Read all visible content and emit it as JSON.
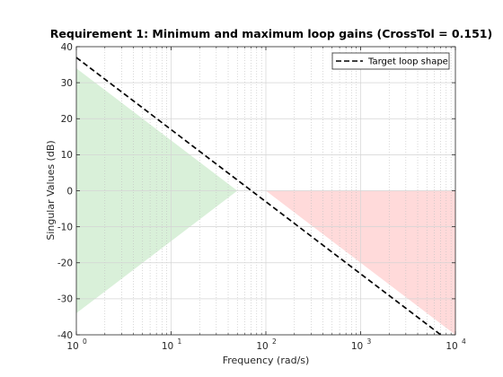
{
  "chart_data": {
    "type": "line",
    "title": "Requirement 1: Minimum and maximum loop gains (CrossTol = 0.151)",
    "xlabel": "Frequency (rad/s)",
    "ylabel": "Singular Values (dB)",
    "x_scale": "log",
    "xlim": [
      1,
      10000
    ],
    "ylim": [
      -40,
      40
    ],
    "x_ticks": [
      {
        "base": "10",
        "exp": "0",
        "value": 1
      },
      {
        "base": "10",
        "exp": "1",
        "value": 10
      },
      {
        "base": "10",
        "exp": "2",
        "value": 100
      },
      {
        "base": "10",
        "exp": "3",
        "value": 1000
      },
      {
        "base": "10",
        "exp": "4",
        "value": 10000
      }
    ],
    "y_ticks": [
      {
        "label": "40",
        "value": 40
      },
      {
        "label": "30",
        "value": 30
      },
      {
        "label": "20",
        "value": 20
      },
      {
        "label": "10",
        "value": 10
      },
      {
        "label": "0",
        "value": 0
      },
      {
        "label": "-10",
        "value": -10
      },
      {
        "label": "-20",
        "value": -20
      },
      {
        "label": "-30",
        "value": -30
      },
      {
        "label": "-40",
        "value": -40
      }
    ],
    "grid": true,
    "minor_grid": true,
    "legend_position": "top-right",
    "series": [
      {
        "name": "Target loop shape",
        "style": "dashed",
        "color": "#000000",
        "x": [
          1,
          7000
        ],
        "y": [
          37,
          -40
        ]
      }
    ],
    "regions": [
      {
        "kind": "min-gain",
        "color": "#d9f0d9",
        "x": [
          1,
          1,
          50
        ],
        "y": [
          34,
          -34,
          0
        ]
      },
      {
        "kind": "max-gain",
        "color": "#ffdada",
        "x": [
          100,
          10000,
          10000
        ],
        "y": [
          0,
          0,
          -40
        ]
      }
    ]
  }
}
